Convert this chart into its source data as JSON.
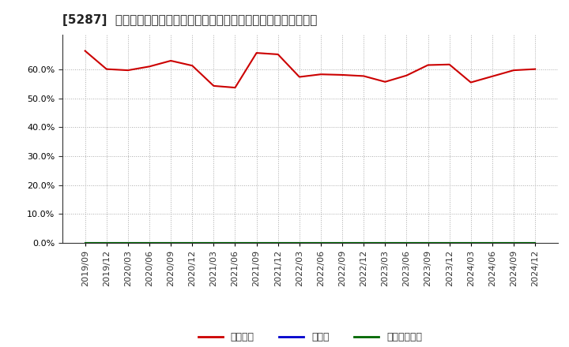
{
  "title": "[5287]  自己資本、のれん、繰延税金資産の総資産に対する比率の推移",
  "x_labels": [
    "2019/09",
    "2019/12",
    "2020/03",
    "2020/06",
    "2020/09",
    "2020/12",
    "2021/03",
    "2021/06",
    "2021/09",
    "2021/12",
    "2022/03",
    "2022/06",
    "2022/09",
    "2022/12",
    "2023/03",
    "2023/06",
    "2023/09",
    "2023/12",
    "2024/03",
    "2024/06",
    "2024/09",
    "2024/12"
  ],
  "equity": [
    0.664,
    0.601,
    0.597,
    0.61,
    0.63,
    0.613,
    0.543,
    0.537,
    0.657,
    0.652,
    0.574,
    0.583,
    0.581,
    0.577,
    0.557,
    0.579,
    0.615,
    0.617,
    0.555,
    0.576,
    0.597,
    0.601
  ],
  "noren": [
    0.0,
    0.0,
    0.0,
    0.0,
    0.0,
    0.0,
    0.0,
    0.0,
    0.0,
    0.0,
    0.0,
    0.0,
    0.0,
    0.0,
    0.0,
    0.0,
    0.0,
    0.0,
    0.0,
    0.0,
    0.0,
    0.0
  ],
  "deferred_tax": [
    0.0,
    0.0,
    0.0,
    0.0,
    0.0,
    0.0,
    0.0,
    0.0,
    0.0,
    0.0,
    0.0,
    0.0,
    0.0,
    0.0,
    0.0,
    0.0,
    0.0,
    0.0,
    0.0,
    0.0,
    0.0,
    0.0
  ],
  "equity_color": "#cc0000",
  "noren_color": "#0000cc",
  "deferred_tax_color": "#006600",
  "background_color": "#ffffff",
  "plot_background": "#ffffff",
  "grid_color": "#aaaaaa",
  "ylim": [
    0.0,
    0.72
  ],
  "yticks": [
    0.0,
    0.1,
    0.2,
    0.3,
    0.4,
    0.5,
    0.6
  ],
  "legend_equity": "自己資本",
  "legend_noren": "のれん",
  "legend_deferred": "繰延税金資産",
  "line_width": 1.5,
  "title_fontsize": 11,
  "tick_fontsize": 8,
  "legend_fontsize": 9
}
